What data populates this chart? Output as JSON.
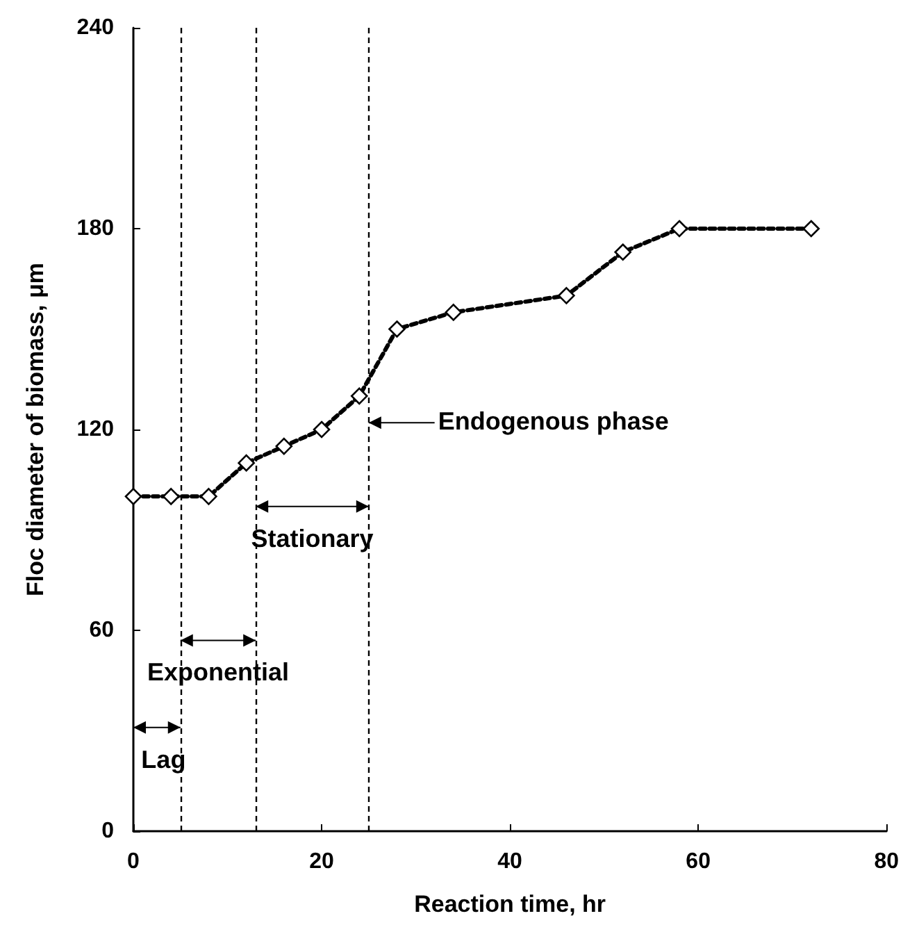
{
  "chart_data": {
    "type": "line",
    "xlabel": "Reaction time, hr",
    "ylabel": "Floc diameter of biomass, μm",
    "x": [
      0,
      4,
      8,
      12,
      16,
      20,
      24,
      28,
      34,
      46,
      52,
      58,
      72
    ],
    "series": [
      {
        "color": "#000000",
        "values": [
          100,
          100,
          100,
          110,
          115,
          120,
          130,
          150,
          155,
          160,
          173,
          180,
          180
        ]
      }
    ],
    "xlim": [
      0,
      80
    ],
    "xticks": [
      0,
      20,
      40,
      60,
      80
    ],
    "ylim": [
      0,
      240
    ],
    "yticks": [
      0,
      60,
      120,
      180,
      240
    ],
    "marker": "diamond",
    "line_style": "dashed",
    "grid": false,
    "ref_lines": [
      {
        "axis": "x",
        "value": 5,
        "color": "#000000",
        "line_style": "dashed"
      },
      {
        "axis": "x",
        "value": 13,
        "color": "#000000",
        "line_style": "dashed"
      },
      {
        "axis": "x",
        "value": 25,
        "color": "#000000",
        "line_style": "dashed"
      }
    ],
    "annotations": [
      "Lag",
      "Exponential",
      "Stationary",
      {
        "text": "Endogenous phase",
        "x": 25,
        "y": 122
      }
    ]
  }
}
